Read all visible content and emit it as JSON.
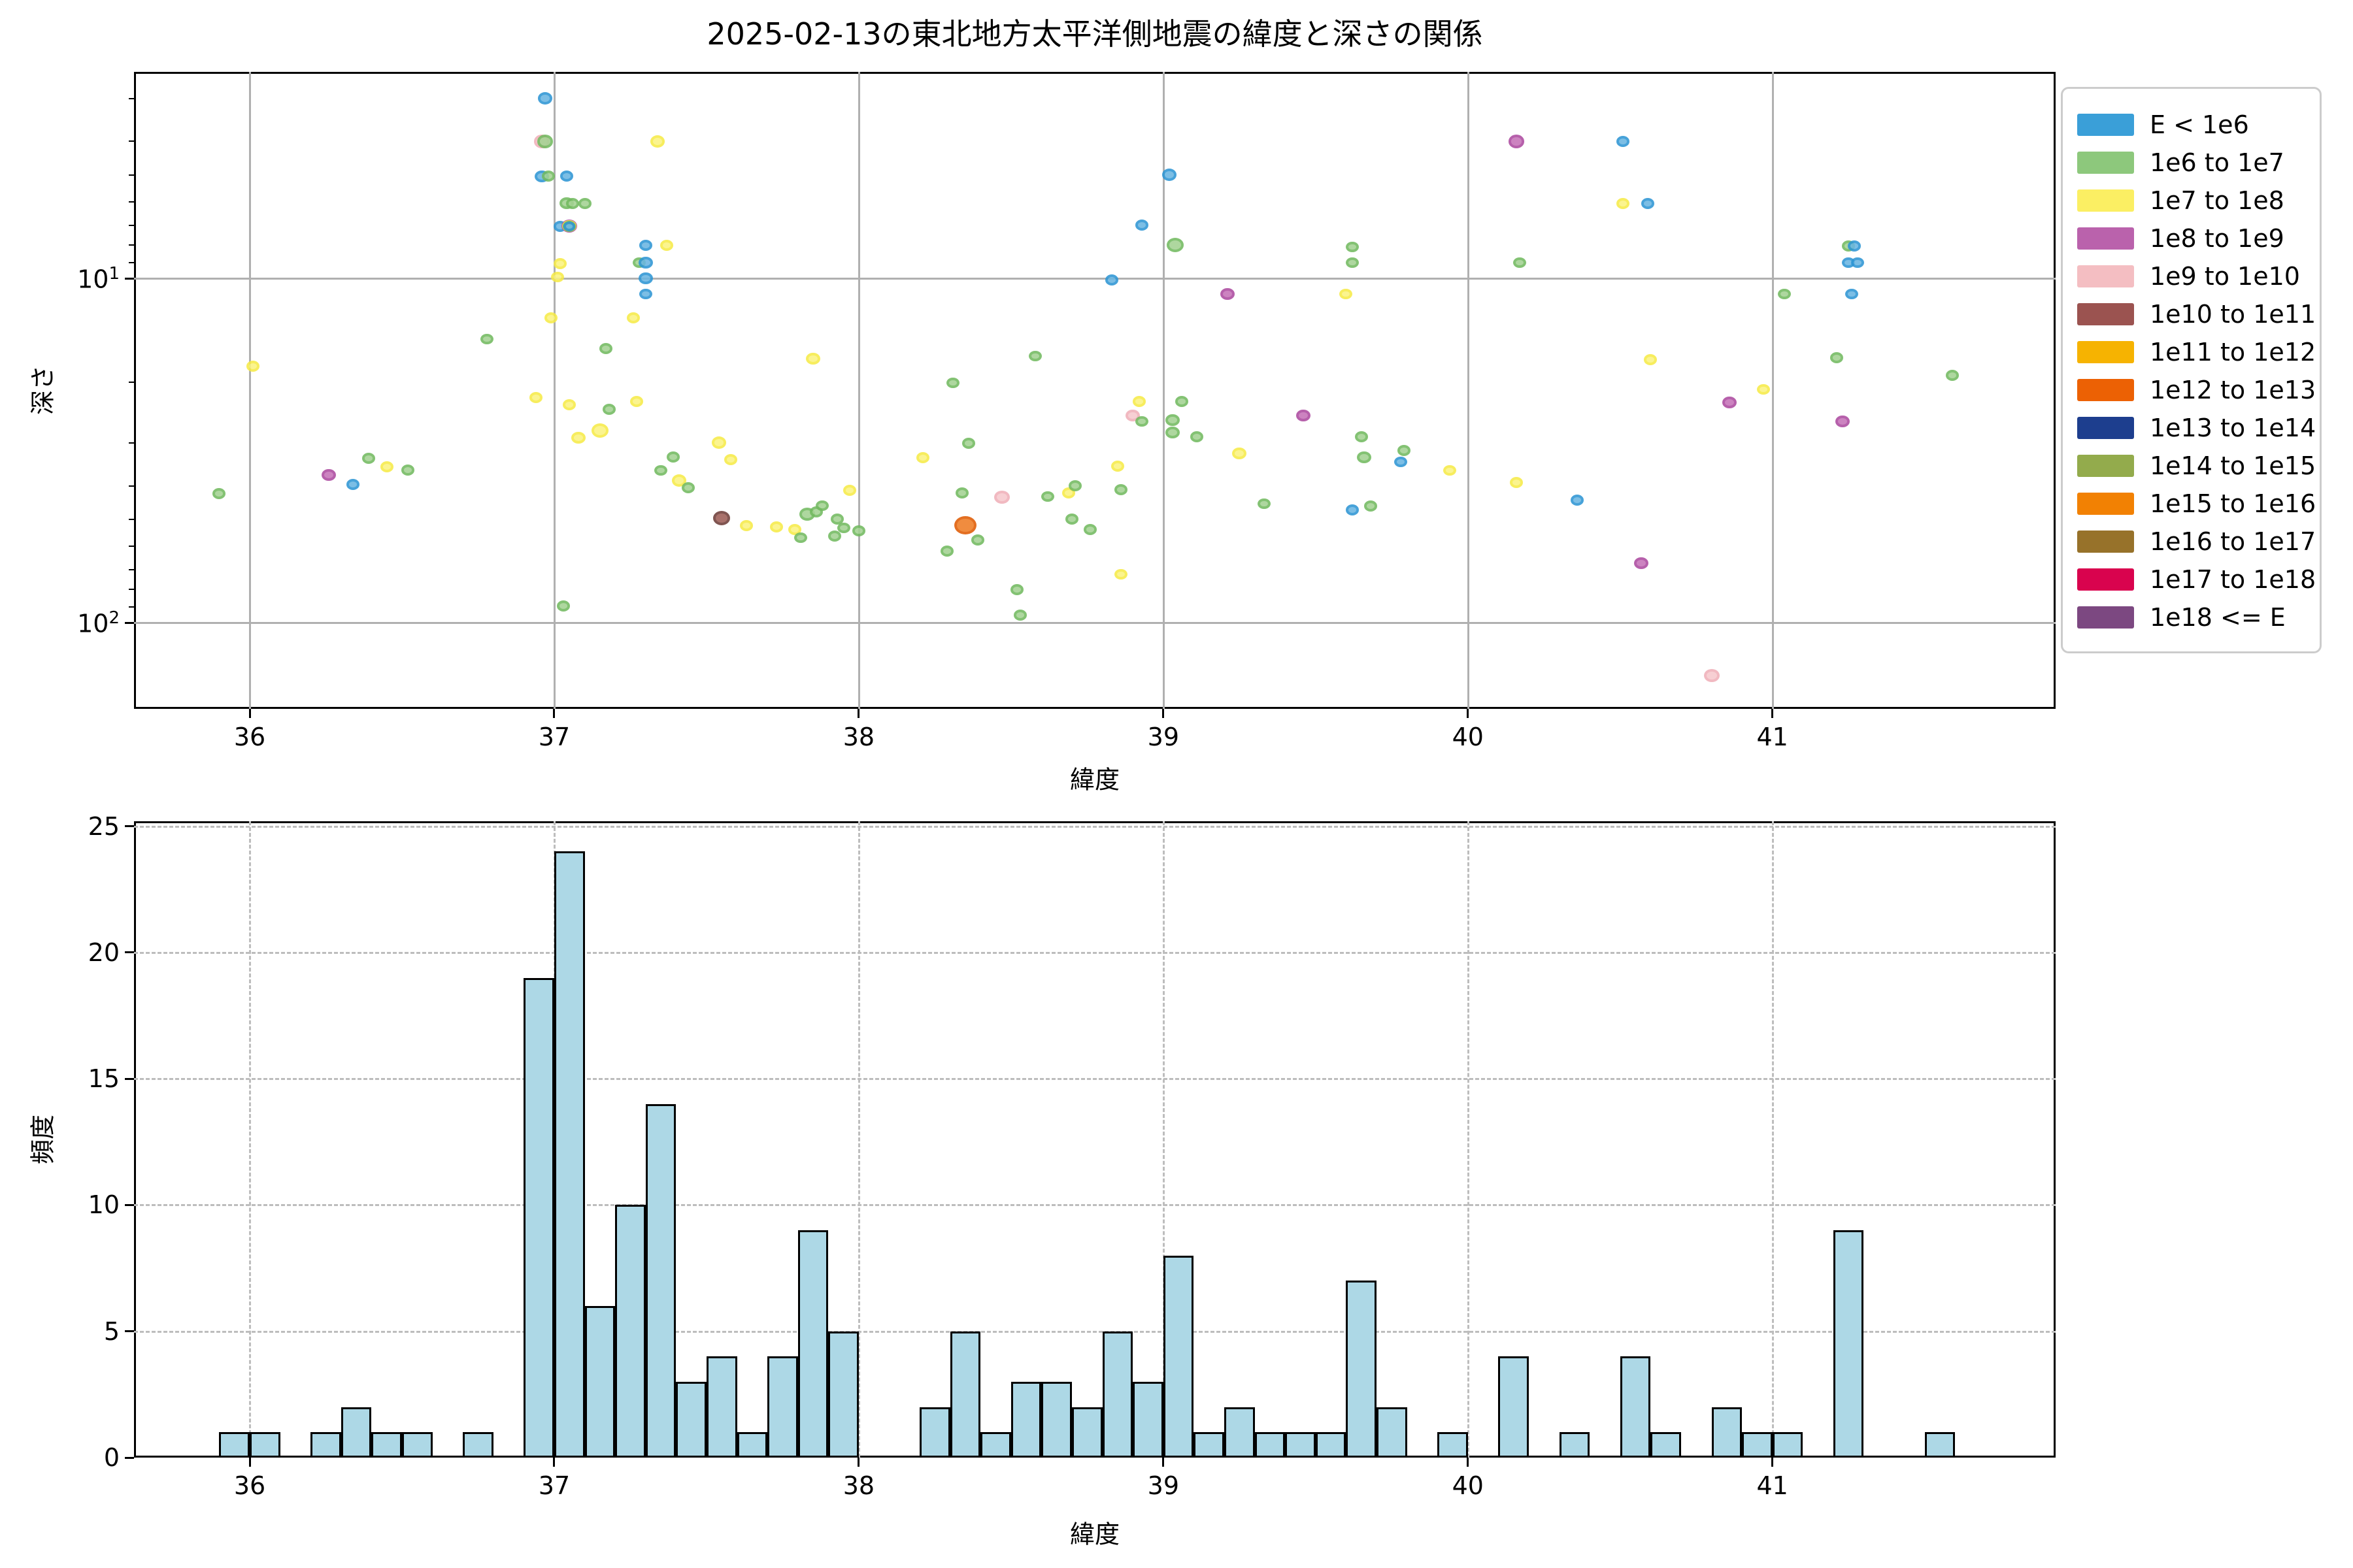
{
  "title": "2025-02-13の東北地方太平洋側地震の緯度と深さの関係",
  "chart_data": [
    {
      "type": "scatter",
      "title": "2025-02-13の東北地方太平洋側地震の緯度と深さの関係",
      "xlabel": "緯度",
      "ylabel": "深さ",
      "xlim": [
        35.62,
        41.93
      ],
      "ylim_depth": [
        2.5,
        178
      ],
      "y_scale": "log10, inverted (depth increases downward)",
      "x_ticks": [
        36,
        37,
        38,
        39,
        40,
        41
      ],
      "y_major_ticks": [
        10,
        100
      ],
      "y_minor_ticks": [
        3,
        4,
        5,
        6,
        7,
        8,
        9,
        20,
        30,
        40,
        50,
        60,
        70,
        80,
        90
      ],
      "grid": "solid gray, major only",
      "point_fields": [
        "latitude",
        "depth",
        "energy_class_index",
        "marker_radius_px"
      ],
      "points": [
        [
          36.97,
          3.0,
          0,
          11
        ],
        [
          36.96,
          4.0,
          4,
          12
        ],
        [
          36.97,
          4.0,
          1,
          12
        ],
        [
          36.96,
          5.05,
          0,
          11
        ],
        [
          36.98,
          5.05,
          1,
          10
        ],
        [
          37.04,
          5.05,
          0,
          10
        ],
        [
          37.04,
          6.05,
          1,
          11
        ],
        [
          37.06,
          6.05,
          1,
          10
        ],
        [
          37.1,
          6.05,
          1,
          10
        ],
        [
          37.02,
          7.05,
          0,
          10
        ],
        [
          37.05,
          7.05,
          3,
          12
        ],
        [
          37.05,
          7.05,
          2,
          11
        ],
        [
          37.05,
          7.05,
          1,
          10
        ],
        [
          37.05,
          7.05,
          0,
          9
        ],
        [
          37.02,
          9.05,
          2,
          10
        ],
        [
          37.01,
          9.9,
          2,
          10
        ],
        [
          36.99,
          13.0,
          2,
          10
        ],
        [
          36.78,
          15.0,
          1,
          10
        ],
        [
          37.17,
          16.0,
          1,
          10
        ],
        [
          36.01,
          18.0,
          2,
          10
        ],
        [
          36.94,
          22.2,
          2,
          10
        ],
        [
          37.05,
          23.3,
          2,
          10
        ],
        [
          37.18,
          24.0,
          1,
          10
        ],
        [
          37.15,
          27.7,
          2,
          13
        ],
        [
          37.08,
          29.0,
          2,
          11
        ],
        [
          36.39,
          33.3,
          1,
          10
        ],
        [
          36.45,
          35.2,
          2,
          10
        ],
        [
          36.52,
          36.0,
          1,
          10
        ],
        [
          36.26,
          37.2,
          3,
          11
        ],
        [
          36.34,
          39.7,
          0,
          10
        ],
        [
          35.9,
          42.1,
          1,
          10
        ],
        [
          37.03,
          89.3,
          1,
          10
        ],
        [
          37.34,
          4.0,
          2,
          11
        ],
        [
          37.3,
          8.0,
          0,
          10
        ],
        [
          37.37,
          8.0,
          2,
          10
        ],
        [
          37.28,
          9.0,
          1,
          10
        ],
        [
          37.3,
          9.0,
          0,
          11
        ],
        [
          37.3,
          10.0,
          0,
          11
        ],
        [
          37.3,
          11.1,
          0,
          10
        ],
        [
          37.26,
          13.0,
          2,
          10
        ],
        [
          37.85,
          17.1,
          2,
          11
        ],
        [
          37.27,
          22.8,
          2,
          10
        ],
        [
          37.54,
          30.0,
          2,
          11
        ],
        [
          37.39,
          33.0,
          1,
          10
        ],
        [
          37.35,
          36.1,
          1,
          10
        ],
        [
          37.58,
          33.6,
          2,
          10
        ],
        [
          37.41,
          38.6,
          2,
          11
        ],
        [
          37.44,
          40.5,
          1,
          10
        ],
        [
          37.55,
          49.7,
          5,
          13
        ],
        [
          37.63,
          52.2,
          2,
          10
        ],
        [
          37.73,
          52.7,
          2,
          10
        ],
        [
          37.79,
          53.6,
          2,
          10
        ],
        [
          37.83,
          48.3,
          1,
          12
        ],
        [
          37.86,
          47.7,
          1,
          10
        ],
        [
          37.88,
          45.7,
          1,
          10
        ],
        [
          37.81,
          56.6,
          1,
          10
        ],
        [
          37.93,
          50.0,
          1,
          10
        ],
        [
          37.92,
          56.0,
          1,
          10
        ],
        [
          37.95,
          53.0,
          1,
          10
        ],
        [
          38.0,
          54.0,
          1,
          10
        ],
        [
          37.97,
          41.2,
          2,
          10
        ],
        [
          38.21,
          33.2,
          2,
          10
        ],
        [
          38.31,
          20.1,
          1,
          10
        ],
        [
          38.36,
          30.1,
          1,
          10
        ],
        [
          38.34,
          42.0,
          1,
          10
        ],
        [
          38.35,
          52.1,
          7,
          17
        ],
        [
          38.39,
          57.5,
          1,
          10
        ],
        [
          38.29,
          62.0,
          1,
          10
        ],
        [
          38.47,
          43.1,
          4,
          12
        ],
        [
          38.58,
          16.8,
          1,
          10
        ],
        [
          38.52,
          80.0,
          1,
          10
        ],
        [
          38.53,
          95.0,
          1,
          10
        ],
        [
          38.62,
          43.0,
          1,
          10
        ],
        [
          38.69,
          42.0,
          2,
          10
        ],
        [
          38.71,
          40.0,
          1,
          10
        ],
        [
          38.7,
          50.0,
          1,
          10
        ],
        [
          38.76,
          53.6,
          1,
          10
        ],
        [
          39.02,
          5.0,
          0,
          11
        ],
        [
          38.93,
          7.0,
          0,
          10
        ],
        [
          39.04,
          8.0,
          1,
          13
        ],
        [
          38.83,
          10.1,
          0,
          10
        ],
        [
          39.62,
          8.1,
          1,
          10
        ],
        [
          39.62,
          9.0,
          1,
          10
        ],
        [
          39.21,
          11.1,
          3,
          11
        ],
        [
          39.6,
          11.1,
          2,
          10
        ],
        [
          40.16,
          4.0,
          3,
          12
        ],
        [
          40.17,
          9.0,
          1,
          10
        ],
        [
          38.92,
          22.8,
          2,
          10
        ],
        [
          38.9,
          25.0,
          4,
          11
        ],
        [
          38.93,
          26.0,
          1,
          10
        ],
        [
          39.06,
          22.8,
          1,
          10
        ],
        [
          39.03,
          25.8,
          1,
          11
        ],
        [
          39.03,
          28.0,
          1,
          11
        ],
        [
          39.11,
          28.8,
          1,
          10
        ],
        [
          39.25,
          32.2,
          2,
          11
        ],
        [
          39.46,
          25.0,
          3,
          11
        ],
        [
          38.85,
          35.1,
          2,
          10
        ],
        [
          38.86,
          41.0,
          1,
          10
        ],
        [
          39.33,
          45.1,
          1,
          10
        ],
        [
          39.65,
          28.8,
          1,
          10
        ],
        [
          39.66,
          33.1,
          1,
          11
        ],
        [
          39.79,
          31.6,
          1,
          10
        ],
        [
          39.78,
          34.1,
          0,
          10
        ],
        [
          39.62,
          47.0,
          0,
          10
        ],
        [
          39.68,
          45.8,
          1,
          10
        ],
        [
          39.94,
          36.1,
          2,
          10
        ],
        [
          40.16,
          39.1,
          2,
          10
        ],
        [
          40.36,
          44.0,
          0,
          10
        ],
        [
          38.86,
          72.3,
          2,
          10
        ],
        [
          40.51,
          4.0,
          0,
          10
        ],
        [
          40.51,
          6.05,
          2,
          10
        ],
        [
          40.59,
          6.05,
          0,
          10
        ],
        [
          41.25,
          8.05,
          1,
          10
        ],
        [
          41.27,
          8.05,
          0,
          10
        ],
        [
          41.25,
          9.0,
          0,
          10
        ],
        [
          41.28,
          9.0,
          0,
          10
        ],
        [
          41.26,
          11.1,
          0,
          10
        ],
        [
          41.04,
          11.1,
          1,
          10
        ],
        [
          40.6,
          17.2,
          2,
          10
        ],
        [
          40.97,
          21.0,
          2,
          10
        ],
        [
          40.86,
          22.9,
          3,
          11
        ],
        [
          41.21,
          17.0,
          1,
          10
        ],
        [
          41.59,
          19.1,
          1,
          10
        ],
        [
          41.23,
          26.0,
          3,
          11
        ],
        [
          40.57,
          67.2,
          3,
          11
        ],
        [
          40.8,
          142.5,
          4,
          12
        ]
      ]
    },
    {
      "type": "histogram",
      "xlabel": "緯度",
      "ylabel": "頻度",
      "bin_start": 35.9,
      "bin_width": 0.1,
      "bin_counts": [
        1,
        1,
        0,
        1,
        2,
        1,
        1,
        0,
        1,
        0,
        19,
        24,
        6,
        10,
        14,
        3,
        4,
        1,
        4,
        9,
        5,
        0,
        0,
        2,
        5,
        1,
        3,
        3,
        2,
        5,
        3,
        8,
        1,
        2,
        1,
        1,
        1,
        7,
        2,
        0,
        1,
        0,
        4,
        0,
        1,
        0,
        4,
        1,
        0,
        2,
        1,
        1,
        0,
        9,
        0,
        0,
        1
      ],
      "x_ticks": [
        36,
        37,
        38,
        39,
        40,
        41
      ],
      "y_ticks": [
        0,
        5,
        10,
        15,
        20,
        25
      ],
      "ylim": [
        0,
        25.2
      ],
      "bar_fill": "#ADD8E6",
      "bar_edge": "#000000",
      "grid": "dashed gray"
    }
  ],
  "legend": {
    "border_color": "#cccccc",
    "entries": [
      {
        "label": "E < 1e6",
        "swatch": "#3A9FD8",
        "point_fill": "#6AB6E2",
        "point_rim": "#2E96D4"
      },
      {
        "label": "1e6 to 1e7",
        "swatch": "#8DC87C",
        "point_fill": "#A3D292",
        "point_rim": "#72BA60"
      },
      {
        "label": "1e7 to 1e8",
        "swatch": "#FBEF63",
        "point_fill": "#FBF380",
        "point_rim": "#F6EB48"
      },
      {
        "label": "1e8 to 1e9",
        "swatch": "#BA62AC",
        "point_fill": "#C573B8",
        "point_rim": "#AD4BA0"
      },
      {
        "label": "1e9 to 1e10",
        "swatch": "#F4BEC2",
        "point_fill": "#F6C9CD",
        "point_rim": "#F0B0B9"
      },
      {
        "label": "1e10 to 1e11",
        "swatch": "#9B5350",
        "point_fill": "#9E5E57",
        "point_rim": "#6F3E3A"
      },
      {
        "label": "1e11 to 1e12",
        "swatch": "#F6B301",
        "point_fill": "#F7BC1F",
        "point_rim": "#DFA300"
      },
      {
        "label": "1e12 to 1e13",
        "swatch": "#EC6104",
        "point_fill": "#EE7D25",
        "point_rim": "#E05C04"
      },
      {
        "label": "1e13 to 1e14",
        "swatch": "#1D3E8E",
        "point_fill": "#2A4D9E",
        "point_rim": "#163077"
      },
      {
        "label": "1e14 to 1e15",
        "swatch": "#93AB4C",
        "point_fill": "#9FB35C",
        "point_rim": "#7E9440"
      },
      {
        "label": "1e15 to 1e16",
        "swatch": "#F28103",
        "point_fill": "#F58D1E",
        "point_rim": "#E07200"
      },
      {
        "label": "1e16 to 1e17",
        "swatch": "#97722A",
        "point_fill": "#A37D34",
        "point_rim": "#7D5D1E"
      },
      {
        "label": "1e17 to 1e18",
        "swatch": "#D9034E",
        "point_fill": "#E01F5C",
        "point_rim": "#BF0040"
      },
      {
        "label": "1e18 <= E",
        "swatch": "#7C4881",
        "point_fill": "#8A5590",
        "point_rim": "#643768"
      }
    ]
  }
}
